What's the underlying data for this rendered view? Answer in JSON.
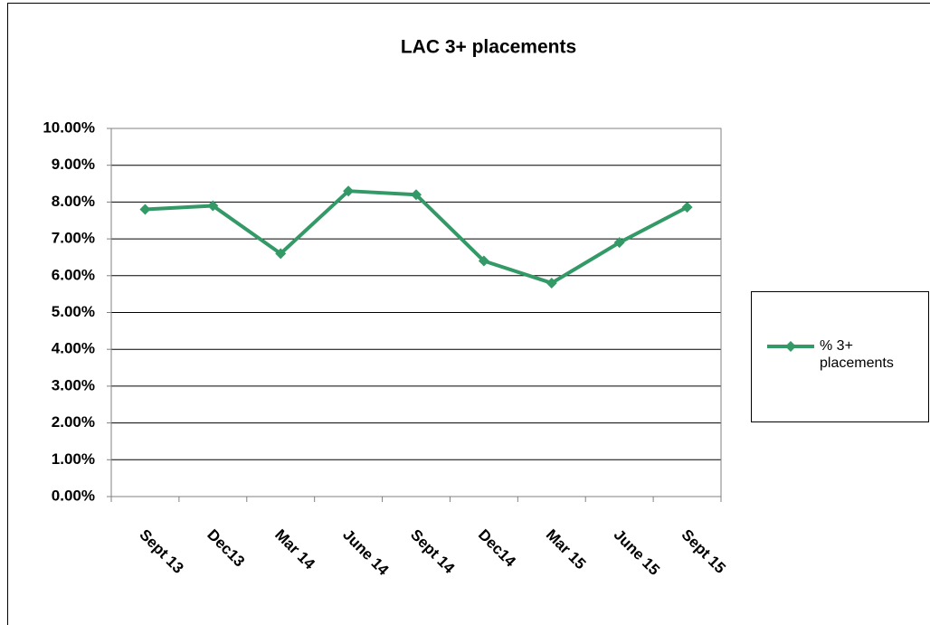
{
  "chart_data": {
    "type": "line",
    "title": "LAC  3+ placements",
    "categories": [
      "Sept 13",
      "Dec13",
      "Mar 14",
      "June 14",
      "Sept 14",
      "Dec14",
      "Mar 15",
      "June 15",
      "Sept 15"
    ],
    "series": [
      {
        "name": "% 3+ placements",
        "color": "#339966",
        "values": [
          7.8,
          7.9,
          6.6,
          8.3,
          8.2,
          6.4,
          5.8,
          6.9,
          7.86
        ]
      }
    ],
    "ylim": [
      0,
      10
    ],
    "yticks": [
      {
        "value": 0,
        "label": "0.00%"
      },
      {
        "value": 1,
        "label": "1.00%"
      },
      {
        "value": 2,
        "label": "2.00%"
      },
      {
        "value": 3,
        "label": "3.00%"
      },
      {
        "value": 4,
        "label": "4.00%"
      },
      {
        "value": 5,
        "label": "5.00%"
      },
      {
        "value": 6,
        "label": "6.00%"
      },
      {
        "value": 7,
        "label": "7.00%"
      },
      {
        "value": 8,
        "label": "8.00%"
      },
      {
        "value": 9,
        "label": "9.00%"
      },
      {
        "value": 10,
        "label": "10.00%"
      }
    ],
    "grid": true,
    "legend": "right"
  }
}
